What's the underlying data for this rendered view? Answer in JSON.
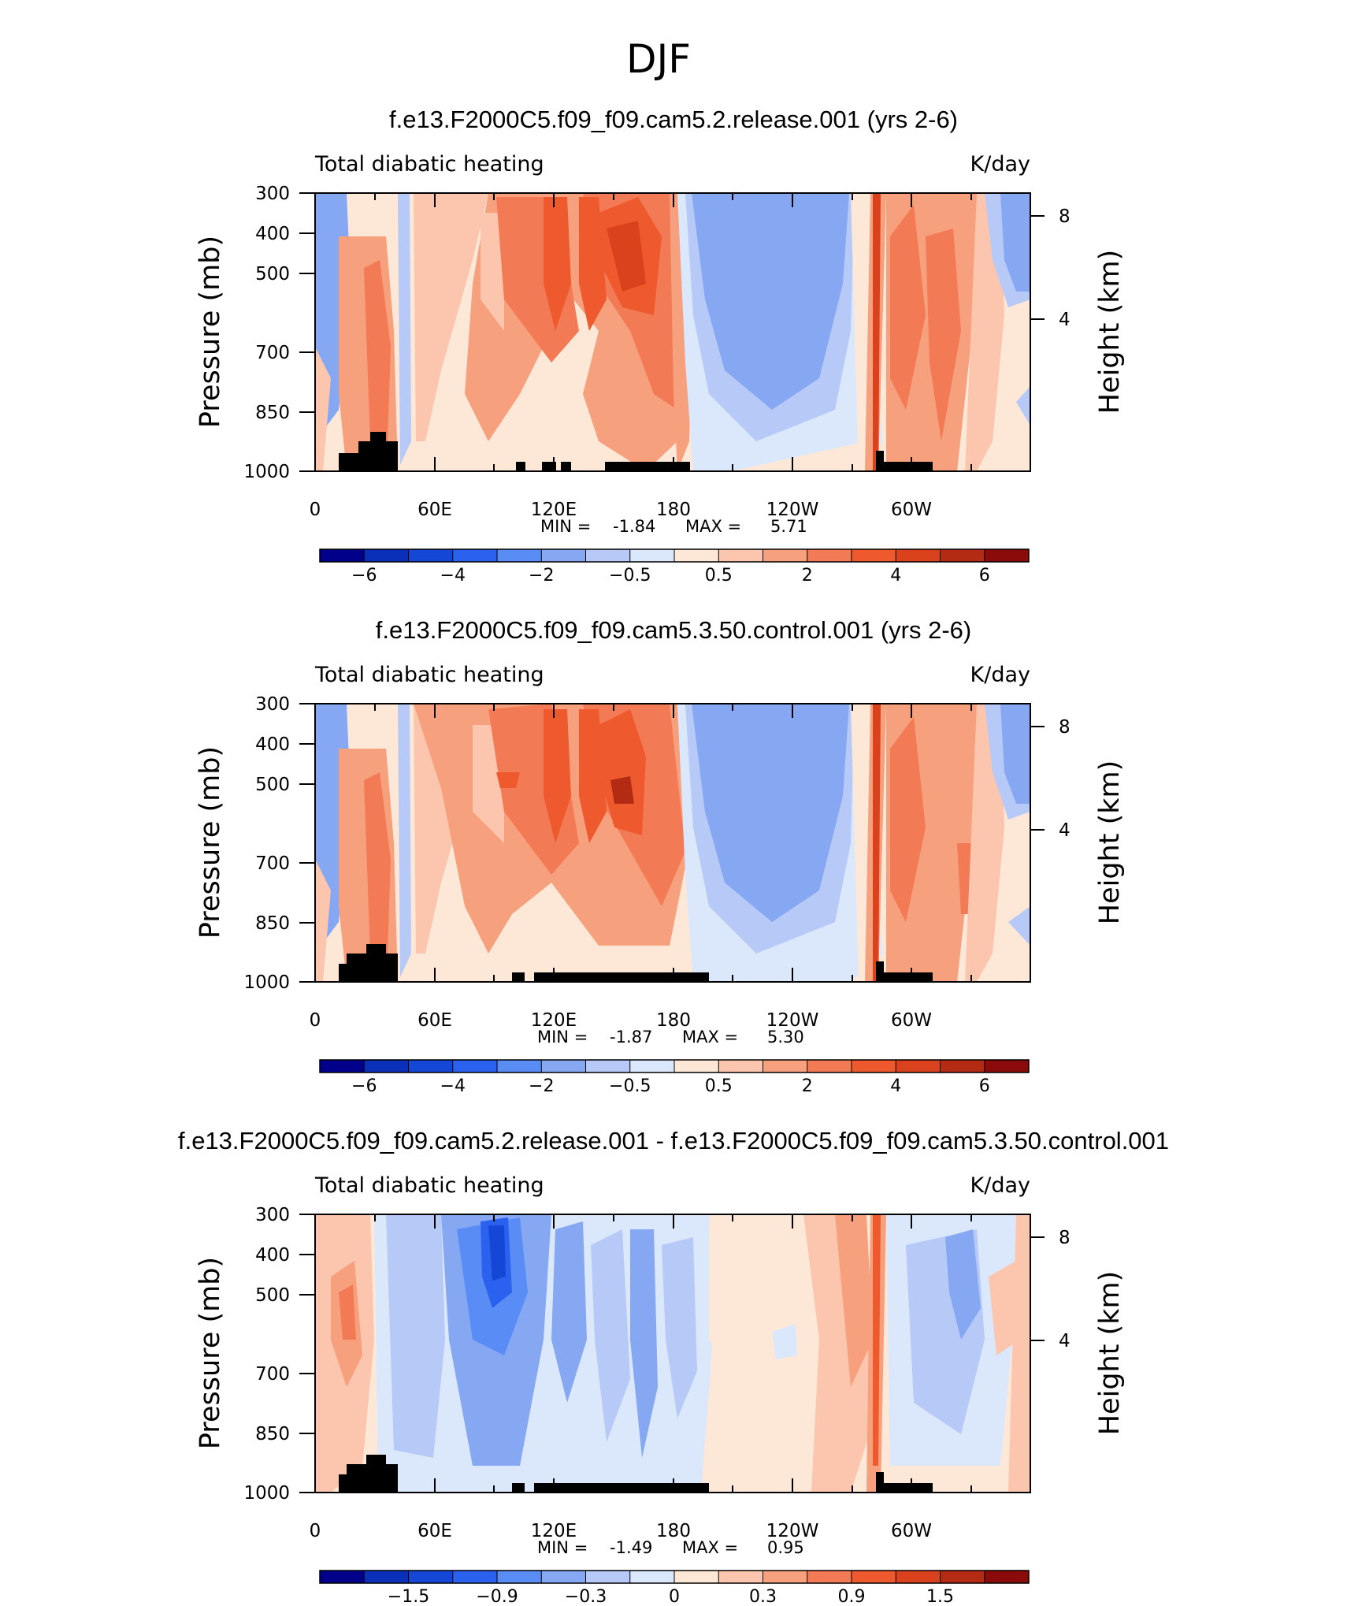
{
  "figure": {
    "title": "DJF"
  },
  "chart_data": [
    {
      "type": "heatmap",
      "title": "f.e13.F2000C5.f09_f09.cam5.2.release.001 (yrs 2-6)",
      "left_label": "Total diabatic heating",
      "right_label": "K/day",
      "ylabel": "Pressure (mb)",
      "ylabel_right": "Height (km)",
      "x_ticks": [
        "0",
        "60E",
        "120E",
        "180",
        "120W",
        "60W"
      ],
      "y_ticks": [
        "300",
        "400",
        "500",
        "500",
        "700",
        "850",
        "1000"
      ],
      "y_ticks_right": [
        "8",
        "4"
      ],
      "xlim": [
        0,
        360
      ],
      "ylim": [
        1000,
        300
      ],
      "min_label": "MIN =",
      "min_value": "-1.84",
      "max_label": "MAX =",
      "max_value": "5.71",
      "colorbar_labels": [
        "−6",
        "−4",
        "−2",
        "−0.5",
        "0.5",
        "2",
        "4",
        "6"
      ],
      "colorbar_colors": [
        "#00008b",
        "#0a2fb8",
        "#1447d6",
        "#2a62ef",
        "#5a8cf5",
        "#86a8f2",
        "#b7c9f6",
        "#dbe8fb",
        "#fde8d8",
        "#fbc6ad",
        "#f6a07d",
        "#f27a55",
        "#ee5a2e",
        "#d9421c",
        "#b42b14",
        "#8b0a0a"
      ]
    },
    {
      "type": "heatmap",
      "title": "f.e13.F2000C5.f09_f09.cam5.3.50.control.001 (yrs 2-6)",
      "left_label": "Total diabatic heating",
      "right_label": "K/day",
      "ylabel": "Pressure (mb)",
      "ylabel_right": "Height (km)",
      "x_ticks": [
        "0",
        "60E",
        "120E",
        "180",
        "120W",
        "60W"
      ],
      "y_ticks": [
        "300",
        "400",
        "500",
        "500",
        "700",
        "850",
        "1000"
      ],
      "y_ticks_right": [
        "8",
        "4"
      ],
      "xlim": [
        0,
        360
      ],
      "ylim": [
        1000,
        300
      ],
      "min_label": "MIN =",
      "min_value": "-1.87",
      "max_label": "MAX =",
      "max_value": "5.30",
      "colorbar_labels": [
        "−6",
        "−4",
        "−2",
        "−0.5",
        "0.5",
        "2",
        "4",
        "6"
      ],
      "colorbar_colors": [
        "#00008b",
        "#0a2fb8",
        "#1447d6",
        "#2a62ef",
        "#5a8cf5",
        "#86a8f2",
        "#b7c9f6",
        "#dbe8fb",
        "#fde8d8",
        "#fbc6ad",
        "#f6a07d",
        "#f27a55",
        "#ee5a2e",
        "#d9421c",
        "#b42b14",
        "#8b0a0a"
      ]
    },
    {
      "type": "heatmap",
      "title": "f.e13.F2000C5.f09_f09.cam5.2.release.001 - f.e13.F2000C5.f09_f09.cam5.3.50.control.001",
      "left_label": "Total diabatic heating",
      "right_label": "K/day",
      "ylabel": "Pressure (mb)",
      "ylabel_right": "Height (km)",
      "x_ticks": [
        "0",
        "60E",
        "120E",
        "180",
        "120W",
        "60W"
      ],
      "y_ticks": [
        "300",
        "400",
        "500",
        "500",
        "700",
        "850",
        "1000"
      ],
      "y_ticks_right": [
        "8",
        "4"
      ],
      "xlim": [
        0,
        360
      ],
      "ylim": [
        1000,
        300
      ],
      "min_label": "MIN =",
      "min_value": "-1.49",
      "max_label": "MAX =",
      "max_value": "0.95",
      "colorbar_labels": [
        "−1.5",
        "−0.9",
        "−0.3",
        "0",
        "0.3",
        "0.9",
        "1.5"
      ],
      "colorbar_colors": [
        "#00008b",
        "#0a2fb8",
        "#1447d6",
        "#2a62ef",
        "#5a8cf5",
        "#86a8f2",
        "#b7c9f6",
        "#dbe8fb",
        "#fde8d8",
        "#fbc6ad",
        "#f6a07d",
        "#f27a55",
        "#ee5a2e",
        "#d9421c",
        "#b42b14",
        "#8b0a0a"
      ]
    }
  ]
}
